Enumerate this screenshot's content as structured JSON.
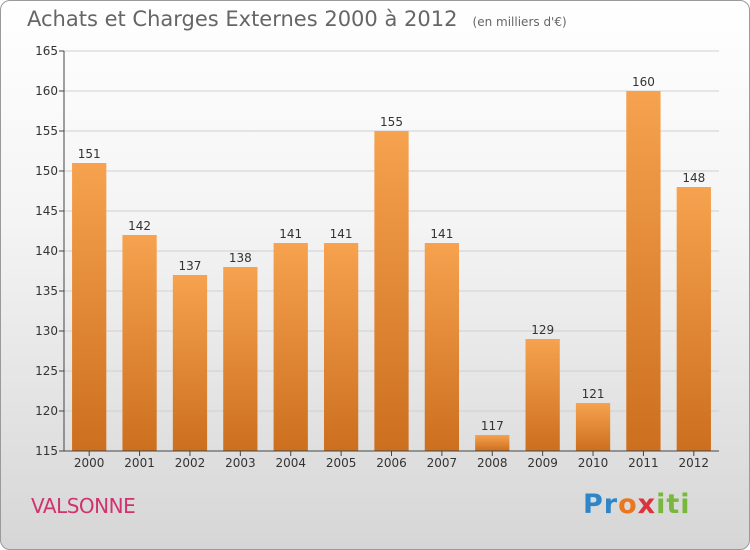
{
  "title": "Achats et Charges Externes 2000 à 2012",
  "unit_note": "(en milliers d'€)",
  "commune": "VALSONNE",
  "logo": {
    "text": "Proxiti",
    "parts": [
      "Pr",
      "o",
      "x",
      "iti"
    ],
    "colors": [
      "#2e86c8",
      "#e8771e",
      "#d9343b",
      "#78b83a"
    ]
  },
  "colors": {
    "bar_top": "#f6a24f",
    "bar_bottom": "#cc6f1e",
    "axis": "#444444",
    "grid": "#d0d0d0",
    "title": "#666666",
    "commune": "#d0336e"
  },
  "chart_data": {
    "type": "bar",
    "title": "Achats et Charges Externes 2000 à 2012",
    "xlabel": "",
    "ylabel": "",
    "categories": [
      "2000",
      "2001",
      "2002",
      "2003",
      "2004",
      "2005",
      "2006",
      "2007",
      "2008",
      "2009",
      "2010",
      "2011",
      "2012"
    ],
    "values": [
      151,
      142,
      137,
      138,
      141,
      141,
      155,
      141,
      117,
      129,
      121,
      160,
      148
    ],
    "ylim": [
      115,
      165
    ],
    "yticks": [
      115,
      120,
      125,
      130,
      135,
      140,
      145,
      150,
      155,
      160,
      165
    ],
    "grid": true,
    "legend": "none"
  }
}
